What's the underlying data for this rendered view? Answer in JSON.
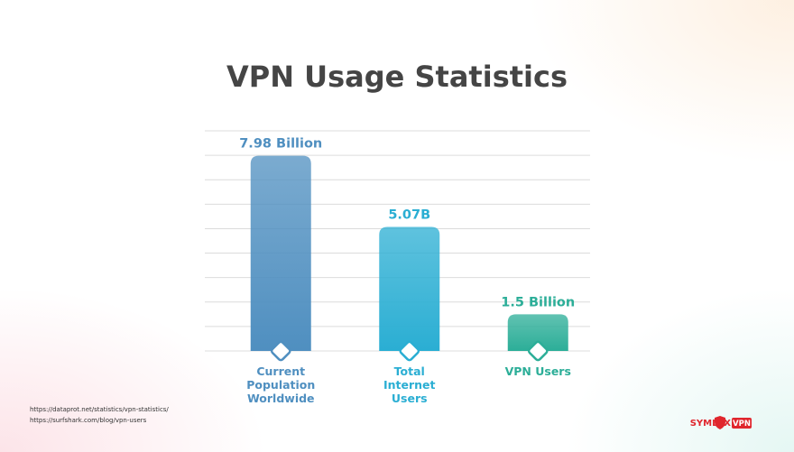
{
  "chart_data": {
    "type": "bar",
    "title": "VPN Usage Statistics",
    "categories": [
      "Current Population Worldwide",
      "Total Internet Users",
      "VPN Users"
    ],
    "values": [
      7.98,
      5.07,
      1.5
    ],
    "value_labels": [
      "7.98 Billion",
      "5.07B",
      "1.5 Billion"
    ],
    "colors": [
      "#4f8fc0",
      "#2aaed3",
      "#2cae98"
    ],
    "ylim": [
      0,
      9
    ],
    "yticks": [
      0,
      1,
      2,
      3,
      4,
      5,
      6,
      7,
      8,
      9
    ],
    "grid": true
  },
  "sources": [
    "https://dataprot.net/statistics/vpn-statistics/",
    "https://surfshark.com/blog/vpn-users"
  ],
  "logo": {
    "name": "SYMLEX",
    "tag": "VPN"
  }
}
